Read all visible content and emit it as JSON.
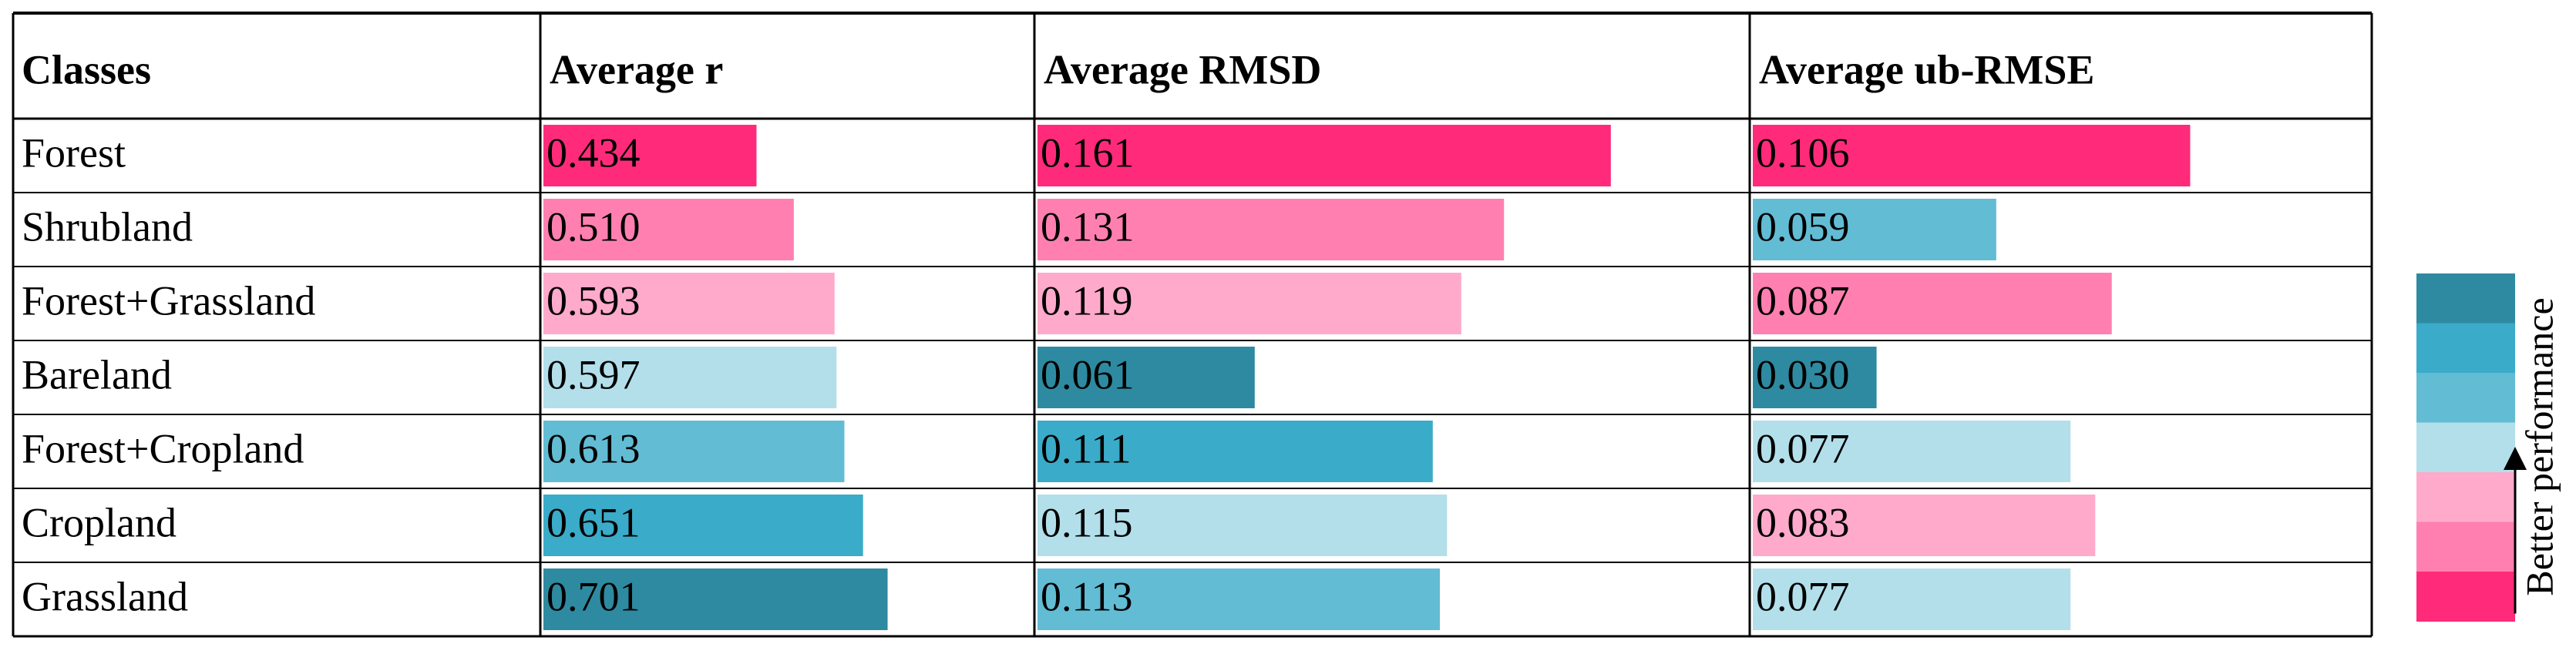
{
  "chart_data": {
    "type": "bar-table",
    "category_label": "Classes",
    "categories": [
      "Forest",
      "Shrubland",
      "Forest+Grassland",
      "Bareland",
      "Forest+Cropland",
      "Cropland",
      "Grassland"
    ],
    "series": [
      {
        "name": "Average r",
        "values": [
          0.434,
          0.51,
          0.593,
          0.597,
          0.613,
          0.651,
          0.701
        ],
        "value_labels": [
          "0.434",
          "0.510",
          "0.593",
          "0.597",
          "0.613",
          "0.651",
          "0.701"
        ],
        "colors": [
          "#ff2b7a",
          "#ff80b0",
          "#ffaacb",
          "#b2dfea",
          "#62bcd4",
          "#3aabc8",
          "#2e8aa0"
        ],
        "xlim": [
          0,
          1
        ]
      },
      {
        "name": "Average RMSD",
        "values": [
          0.161,
          0.131,
          0.119,
          0.061,
          0.111,
          0.115,
          0.113
        ],
        "value_labels": [
          "0.161",
          "0.131",
          "0.119",
          "0.061",
          "0.111",
          "0.115",
          "0.113"
        ],
        "colors": [
          "#ff2b7a",
          "#ff80b0",
          "#ffaacb",
          "#2e8aa0",
          "#3aabc8",
          "#b2dfea",
          "#62bcd4"
        ],
        "xlim": [
          0,
          0.2
        ]
      },
      {
        "name": "Average ub-RMSE",
        "values": [
          0.106,
          0.059,
          0.087,
          0.03,
          0.077,
          0.083,
          0.077
        ],
        "value_labels": [
          "0.106",
          "0.059",
          "0.087",
          "0.030",
          "0.077",
          "0.083",
          "0.077"
        ],
        "colors": [
          "#ff2b7a",
          "#62bcd4",
          "#ff80b0",
          "#2e8aa0",
          "#b2dfea",
          "#ffaacb",
          "#b2dfea"
        ],
        "xlim": [
          0,
          0.15
        ]
      }
    ],
    "legend": {
      "label": "Better performance",
      "colors": [
        "#2e8aa0",
        "#3aabc8",
        "#62bcd4",
        "#b2dfea",
        "#ffaacb",
        "#ff80b0",
        "#ff2b7a"
      ]
    }
  }
}
